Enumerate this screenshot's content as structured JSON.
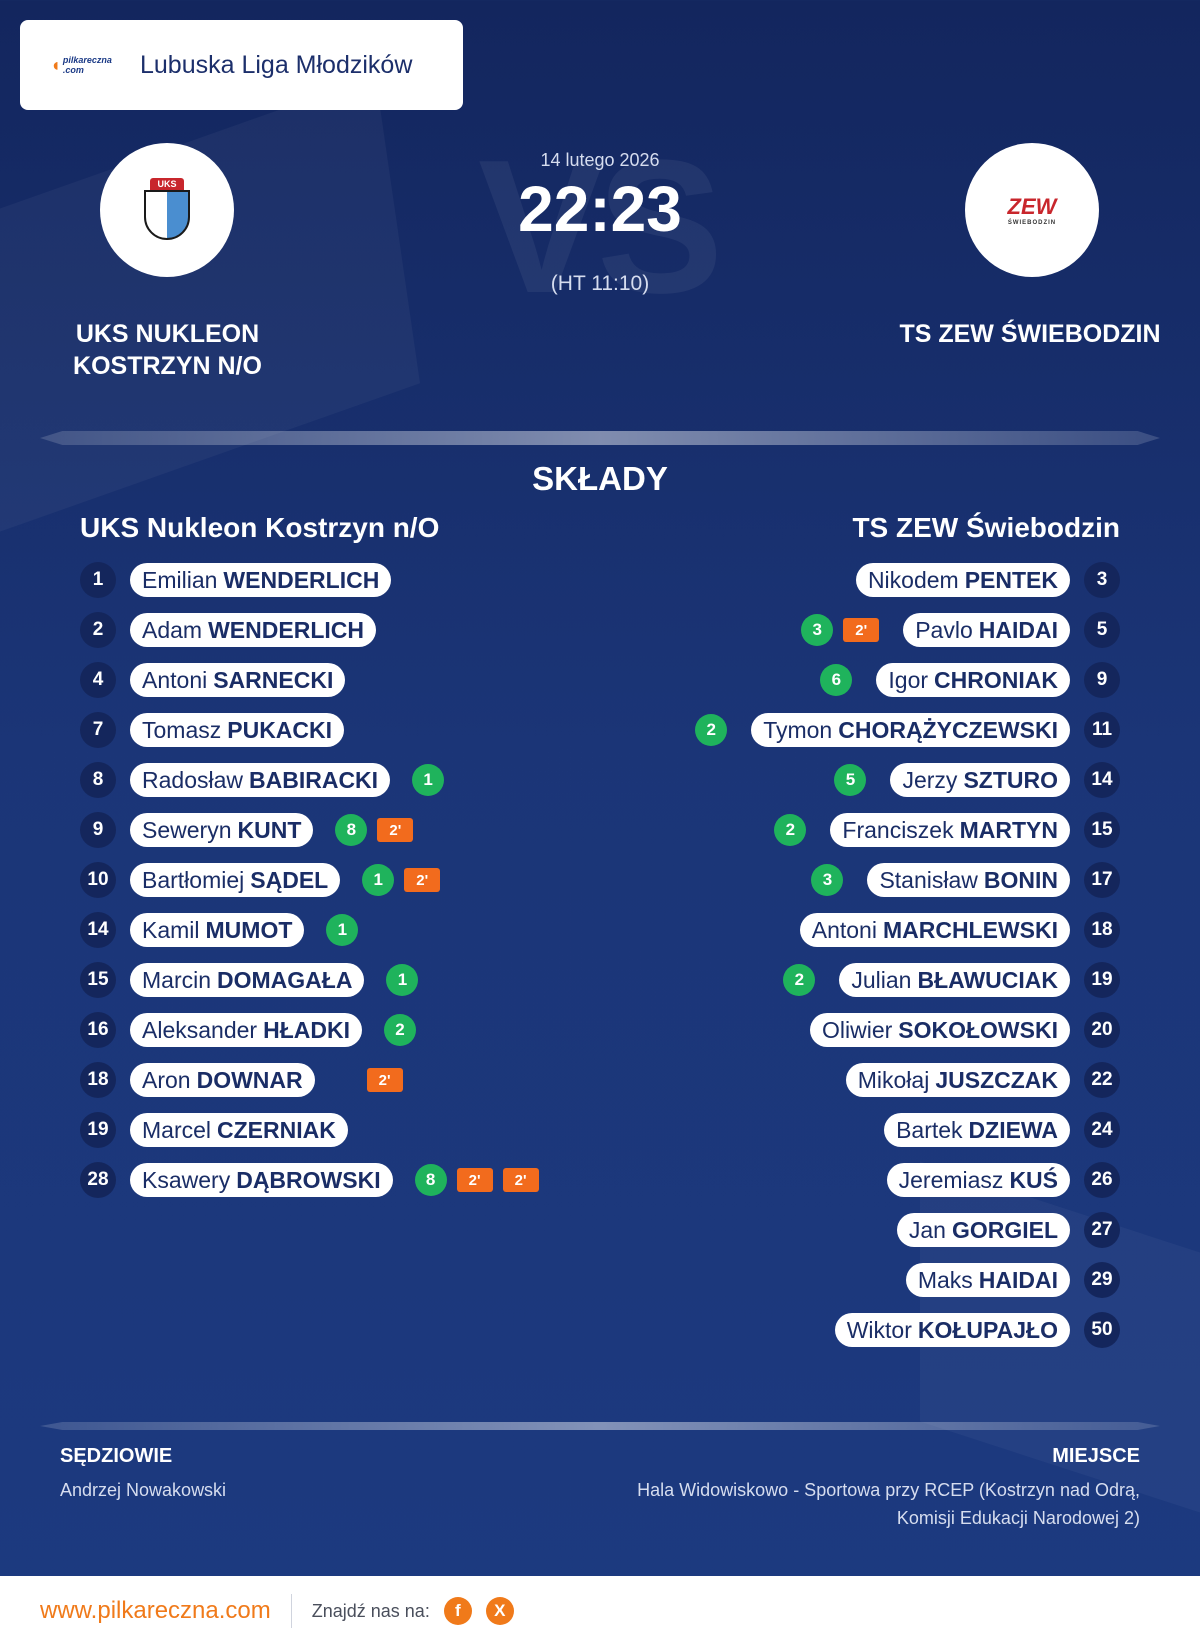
{
  "league": {
    "name": "Lubuska Liga Młodzików",
    "logo_text": "pilkareczna .com"
  },
  "match": {
    "date": "14 lutego 2026",
    "score": "22:23",
    "halftime": "(HT 11:10)",
    "watermark": "VS"
  },
  "home": {
    "name_big": "UKS NUKLEON KOSTRZYN N/O",
    "name": "UKS Nukleon Kostrzyn n/O",
    "logo_text": "UKS",
    "players": [
      {
        "num": "1",
        "first": "Emilian",
        "last": "WENDERLICH",
        "goals": "",
        "susp": []
      },
      {
        "num": "2",
        "first": "Adam",
        "last": "WENDERLICH",
        "goals": "",
        "susp": []
      },
      {
        "num": "4",
        "first": "Antoni",
        "last": "SARNECKI",
        "goals": "",
        "susp": []
      },
      {
        "num": "7",
        "first": "Tomasz",
        "last": "PUKACKI",
        "goals": "",
        "susp": []
      },
      {
        "num": "8",
        "first": "Radosław",
        "last": "BABIRACKI",
        "goals": "1",
        "susp": []
      },
      {
        "num": "9",
        "first": "Seweryn",
        "last": "KUNT",
        "goals": "8",
        "susp": [
          "2'"
        ]
      },
      {
        "num": "10",
        "first": "Bartłomiej",
        "last": "SĄDEL",
        "goals": "1",
        "susp": [
          "2'"
        ]
      },
      {
        "num": "14",
        "first": "Kamil",
        "last": "MUMOT",
        "goals": "1",
        "susp": []
      },
      {
        "num": "15",
        "first": "Marcin",
        "last": "DOMAGAŁA",
        "goals": "1",
        "susp": []
      },
      {
        "num": "16",
        "first": "Aleksander",
        "last": "HŁADKI",
        "goals": "2",
        "susp": []
      },
      {
        "num": "18",
        "first": "Aron",
        "last": "DOWNAR",
        "goals": "",
        "susp": [
          "2'"
        ]
      },
      {
        "num": "19",
        "first": "Marcel",
        "last": "CZERNIAK",
        "goals": "",
        "susp": []
      },
      {
        "num": "28",
        "first": "Ksawery",
        "last": "DĄBROWSKI",
        "goals": "8",
        "susp": [
          "2'",
          "2'"
        ]
      }
    ]
  },
  "away": {
    "name_big": "TS ZEW ŚWIEBODZIN",
    "name": "TS ZEW Świebodzin",
    "logo_text": "ZEW",
    "logo_sub": "ŚWIEBODZIN",
    "players": [
      {
        "num": "3",
        "first": "Nikodem",
        "last": "PENTEK",
        "goals": "",
        "susp": []
      },
      {
        "num": "5",
        "first": "Pavlo",
        "last": "HAIDAI",
        "goals": "3",
        "susp": [
          "2'"
        ]
      },
      {
        "num": "9",
        "first": "Igor",
        "last": "CHRONIAK",
        "goals": "6",
        "susp": []
      },
      {
        "num": "11",
        "first": "Tymon",
        "last": "CHORĄŻYCZEWSKI",
        "goals": "2",
        "susp": []
      },
      {
        "num": "14",
        "first": "Jerzy",
        "last": "SZTURO",
        "goals": "5",
        "susp": []
      },
      {
        "num": "15",
        "first": "Franciszek",
        "last": "MARTYN",
        "goals": "2",
        "susp": []
      },
      {
        "num": "17",
        "first": "Stanisław",
        "last": "BONIN",
        "goals": "3",
        "susp": []
      },
      {
        "num": "18",
        "first": "Antoni",
        "last": "MARCHLEWSKI",
        "goals": "",
        "susp": []
      },
      {
        "num": "19",
        "first": "Julian",
        "last": "BŁAWUCIAK",
        "goals": "2",
        "susp": []
      },
      {
        "num": "20",
        "first": "Oliwier",
        "last": "SOKOŁOWSKI",
        "goals": "",
        "susp": []
      },
      {
        "num": "22",
        "first": "Mikołaj",
        "last": "JUSZCZAK",
        "goals": "",
        "susp": []
      },
      {
        "num": "24",
        "first": "Bartek",
        "last": "DZIEWA",
        "goals": "",
        "susp": []
      },
      {
        "num": "26",
        "first": "Jeremiasz",
        "last": "KUŚ",
        "goals": "",
        "susp": []
      },
      {
        "num": "27",
        "first": "Jan",
        "last": "GORGIEL",
        "goals": "",
        "susp": []
      },
      {
        "num": "29",
        "first": "Maks",
        "last": "HAIDAI",
        "goals": "",
        "susp": []
      },
      {
        "num": "50",
        "first": "Wiktor",
        "last": "KOŁUPAJŁO",
        "goals": "",
        "susp": []
      }
    ]
  },
  "section_title": "SKŁADY",
  "referees": {
    "label": "SĘDZIOWIE",
    "value": "Andrzej Nowakowski"
  },
  "venue": {
    "label": "MIEJSCE",
    "value": "Hala Widowiskowo - Sportowa przy RCEP (Kostrzyn nad Odrą, Komisji Edukacji Narodowej 2)"
  },
  "footer": {
    "site": "www.pilkareczna.com",
    "find_label": "Znajdź nas na:",
    "social": [
      "f",
      "X"
    ]
  }
}
